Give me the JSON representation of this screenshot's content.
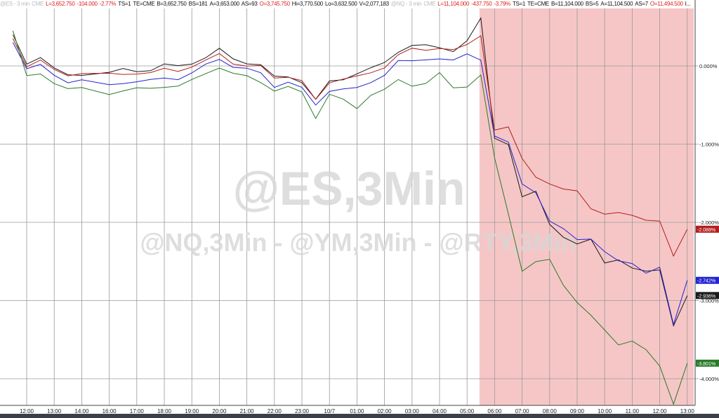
{
  "header": {
    "es": {
      "symbol": "@ES - 3 min",
      "exchange_tag": "CME",
      "last": "L=3,652.750",
      "change": "-104.000",
      "pct": "-2.77%",
      "ts": "TS=1",
      "te": "TE=CME",
      "bid": "B=3,652.750",
      "bs": "BS=181",
      "ask": "A=3,653.000",
      "as": "AS=93",
      "open": "O=3,745.750",
      "high": "Hi=3,770.500",
      "low": "Lo=3,632.500",
      "vol": "V=2,077,183"
    },
    "nq": {
      "symbol": "@NQ - 3 min",
      "exchange_tag": "CME",
      "last": "L=11,104.000",
      "change": "-437.750",
      "pct": "-3.79%",
      "ts": "TS=1",
      "te": "TE=CME",
      "bid": "B=11,104.000",
      "bs": "BS=5",
      "ask": "A=11,104.500",
      "as": "AS=7",
      "open": "O=11,494.500",
      "more": "I..."
    }
  },
  "watermark": {
    "main": "@ES,3Min",
    "sub": "@NQ,3Min - @YM,3Min - @RTY,3Min"
  },
  "colors": {
    "black": "#1a1a1a",
    "red": "#b41e1e",
    "blue": "#2323d0",
    "green": "#2a7a2a",
    "highlight": "#f6c6c6"
  },
  "chart_data": {
    "type": "line",
    "ylim": [
      -4.3,
      0.75
    ],
    "y_ticks": [
      "0.000%",
      "-1.000%",
      "-2.000%",
      "-3.000%",
      "-4.000%"
    ],
    "y_tick_values": [
      0,
      -1,
      -2,
      -3,
      -4
    ],
    "x_ticks": [
      "12:00",
      "13:00",
      "14:00",
      "16:00",
      "17:00",
      "18:00",
      "19:00",
      "20:00",
      "21:00",
      "22:00",
      "23:00",
      "10/7",
      "01:00",
      "02:00",
      "03:00",
      "04:00",
      "05:00",
      "06:00",
      "07:00",
      "08:00",
      "09:00",
      "10:00",
      "11:00",
      "12:00",
      "13:00"
    ],
    "highlight_from": "05:27",
    "x": [
      "11:30",
      "12:00",
      "12:30",
      "13:00",
      "13:30",
      "14:00",
      "16:00",
      "16:30",
      "17:00",
      "17:30",
      "18:00",
      "18:30",
      "19:00",
      "19:30",
      "20:00",
      "20:30",
      "21:00",
      "21:30",
      "22:00",
      "22:30",
      "23:00",
      "23:30",
      "00:00",
      "00:30",
      "01:00",
      "01:30",
      "02:00",
      "02:30",
      "03:00",
      "03:30",
      "04:00",
      "04:30",
      "05:00",
      "05:30",
      "06:00",
      "06:30",
      "07:00",
      "07:30",
      "08:00",
      "08:30",
      "09:00",
      "09:30",
      "10:00",
      "10:30",
      "11:00",
      "11:30",
      "12:00",
      "12:30",
      "13:00"
    ],
    "series": [
      {
        "color": "#1a1a1a",
        "last_label": "-2.936%",
        "values": [
          0.4,
          0.05,
          0.1,
          -0.05,
          -0.1,
          -0.1,
          -0.1,
          -0.05,
          -0.05,
          -0.05,
          0,
          0,
          0.05,
          0.1,
          0.2,
          0.1,
          0.05,
          0,
          -0.15,
          -0.12,
          -0.2,
          -0.45,
          -0.2,
          -0.15,
          -0.1,
          -0.05,
          0.05,
          0.2,
          0.25,
          0.25,
          0.25,
          0.2,
          0.3,
          0.6,
          -0.9,
          -1.0,
          -1.7,
          -1.6,
          -2.0,
          -2.2,
          -2.3,
          -2.2,
          -2.5,
          -2.5,
          -2.6,
          -2.6,
          -2.6,
          -3.35,
          -2.936
        ]
      },
      {
        "color": "#b41e1e",
        "last_label": "-2.088%",
        "values": [
          0.35,
          0,
          0.05,
          -0.05,
          -0.1,
          -0.1,
          -0.12,
          -0.1,
          -0.08,
          -0.1,
          -0.05,
          -0.05,
          0,
          0.05,
          0.15,
          0.05,
          0,
          -0.02,
          -0.15,
          -0.12,
          -0.2,
          -0.45,
          -0.2,
          -0.15,
          -0.15,
          -0.1,
          0,
          0.15,
          0.2,
          0.2,
          0.25,
          0.2,
          0.25,
          0.4,
          -0.8,
          -0.8,
          -1.2,
          -1.4,
          -1.5,
          -1.6,
          -1.6,
          -1.8,
          -1.9,
          -1.9,
          -1.9,
          -1.95,
          -2.0,
          -2.45,
          -2.088
        ]
      },
      {
        "color": "#2323d0",
        "last_label": "-2.742%",
        "values": [
          0.3,
          -0.05,
          0,
          -0.1,
          -0.2,
          -0.2,
          -0.25,
          -0.2,
          -0.2,
          -0.2,
          -0.15,
          -0.15,
          -0.1,
          0,
          0.1,
          0,
          -0.05,
          -0.1,
          -0.25,
          -0.2,
          -0.3,
          -0.5,
          -0.3,
          -0.3,
          -0.3,
          -0.2,
          -0.1,
          0.05,
          0.05,
          0.1,
          0.1,
          0.05,
          0.15,
          0.1,
          -0.9,
          -1.0,
          -1.5,
          -1.6,
          -2.0,
          -2.1,
          -2.2,
          -2.2,
          -2.4,
          -2.5,
          -2.5,
          -2.65,
          -2.6,
          -3.3,
          -2.742
        ]
      },
      {
        "color": "#2a7a2a",
        "last_label": "-3.801%",
        "values": [
          0.45,
          -0.15,
          -0.1,
          -0.2,
          -0.3,
          -0.3,
          -0.35,
          -0.3,
          -0.3,
          -0.3,
          -0.25,
          -0.25,
          -0.2,
          -0.1,
          0,
          -0.1,
          -0.15,
          -0.2,
          -0.3,
          -0.28,
          -0.35,
          -0.65,
          -0.35,
          -0.45,
          -0.55,
          -0.35,
          -0.3,
          -0.2,
          -0.25,
          -0.2,
          -0.1,
          -0.3,
          -0.25,
          -0.1,
          -1.2,
          -1.9,
          -2.6,
          -2.5,
          -2.5,
          -2.8,
          -3.0,
          -3.2,
          -3.4,
          -3.55,
          -3.5,
          -3.65,
          -3.85,
          -4.3,
          -3.801
        ]
      }
    ]
  }
}
